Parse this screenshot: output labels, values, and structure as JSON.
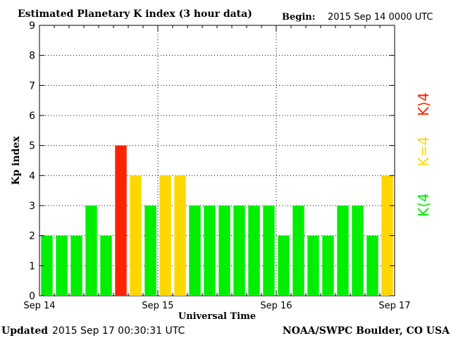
{
  "header": {
    "title": "Estimated Planetary K index (3 hour data)",
    "begin_label": "Begin:",
    "begin_value": "2015 Sep 14 0000 UTC"
  },
  "footer": {
    "updated_label": "Updated",
    "updated_value": "2015 Sep 17 00:30:31 UTC",
    "source": "NOAA/SWPC Boulder, CO USA"
  },
  "legend": {
    "low": {
      "text": "K⟨4",
      "color": "#00ee00"
    },
    "mid": {
      "text": "K=4",
      "color": "#ffd700"
    },
    "high": {
      "text": "K⟩4",
      "color": "#ff2200"
    }
  },
  "chart_data": {
    "type": "bar",
    "title": "Estimated Planetary K index (3 hour data)",
    "xlabel": "Universal Time",
    "ylabel": "Kp index",
    "ylim": [
      0,
      9
    ],
    "yticks": [
      0,
      1,
      2,
      3,
      4,
      5,
      6,
      7,
      8,
      9
    ],
    "xticks": [
      "Sep 14",
      "Sep 15",
      "Sep 16",
      "Sep 17"
    ],
    "grid": true,
    "bars_per_day": 8,
    "values": [
      2,
      2,
      2,
      3,
      2,
      5,
      4,
      3,
      4,
      4,
      3,
      3,
      3,
      3,
      3,
      3,
      2,
      3,
      2,
      2,
      3,
      3,
      2,
      4
    ],
    "colors": {
      "low": "#00ee00",
      "mid": "#ffd700",
      "high": "#ff2200"
    }
  }
}
